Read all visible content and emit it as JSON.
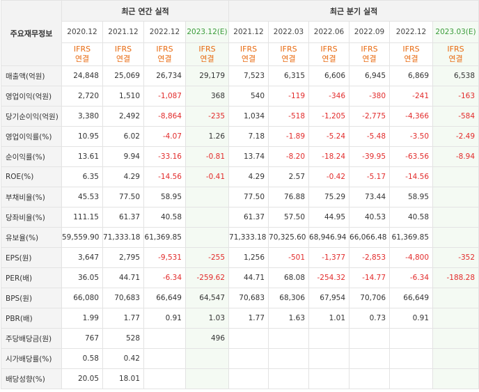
{
  "header": {
    "corner_label": "주요재무정보",
    "annual_title": "최근 연간 실적",
    "quarterly_title": "최근 분기 실적",
    "periods": [
      "2020.12",
      "2021.12",
      "2022.12",
      "2023.12(E)",
      "2021.12",
      "2022.03",
      "2022.06",
      "2022.09",
      "2022.12",
      "2023.03(E)"
    ],
    "ifrs_line1": "IFRS",
    "ifrs_line2": "연결"
  },
  "rows": [
    {
      "label": "매출액(억원)",
      "values": [
        "24,848",
        "25,069",
        "26,734",
        "29,179",
        "7,523",
        "6,315",
        "6,606",
        "6,945",
        "6,869",
        "6,538"
      ]
    },
    {
      "label": "영업이익(억원)",
      "values": [
        "2,720",
        "1,510",
        "-1,087",
        "368",
        "540",
        "-119",
        "-346",
        "-380",
        "-241",
        "-163"
      ]
    },
    {
      "label": "당기순이익(억원)",
      "values": [
        "3,380",
        "2,492",
        "-8,864",
        "-235",
        "1,034",
        "-518",
        "-1,205",
        "-2,775",
        "-4,366",
        "-584"
      ]
    },
    {
      "label": "영업이익률(%)",
      "values": [
        "10.95",
        "6.02",
        "-4.07",
        "1.26",
        "7.18",
        "-1.89",
        "-5.24",
        "-5.48",
        "-3.50",
        "-2.49"
      ]
    },
    {
      "label": "순이익률(%)",
      "values": [
        "13.61",
        "9.94",
        "-33.16",
        "-0.81",
        "13.74",
        "-8.20",
        "-18.24",
        "-39.95",
        "-63.56",
        "-8.94"
      ]
    },
    {
      "label": "ROE(%)",
      "values": [
        "6.35",
        "4.29",
        "-14.56",
        "-0.41",
        "4.29",
        "2.57",
        "-0.42",
        "-5.17",
        "-14.56",
        ""
      ]
    },
    {
      "label": "부채비율(%)",
      "values": [
        "45.53",
        "77.50",
        "58.95",
        "",
        "77.50",
        "76.88",
        "75.29",
        "73.44",
        "58.95",
        ""
      ]
    },
    {
      "label": "당좌비율(%)",
      "values": [
        "111.15",
        "61.37",
        "40.58",
        "",
        "61.37",
        "57.50",
        "44.95",
        "40.53",
        "40.58",
        ""
      ]
    },
    {
      "label": "유보율(%)",
      "values": [
        "59,559.90",
        "71,333.18",
        "61,369.85",
        "",
        "71,333.18",
        "70,325.60",
        "68,946.94",
        "66,066.48",
        "61,369.85",
        ""
      ]
    },
    {
      "label": "EPS(원)",
      "values": [
        "3,647",
        "2,795",
        "-9,531",
        "-255",
        "1,256",
        "-501",
        "-1,377",
        "-2,853",
        "-4,800",
        "-352"
      ]
    },
    {
      "label": "PER(배)",
      "values": [
        "36.05",
        "44.71",
        "-6.34",
        "-259.62",
        "44.71",
        "68.08",
        "-254.32",
        "-14.77",
        "-6.34",
        "-188.28"
      ]
    },
    {
      "label": "BPS(원)",
      "values": [
        "66,080",
        "70,683",
        "66,649",
        "64,547",
        "70,683",
        "68,306",
        "67,954",
        "70,706",
        "66,649",
        ""
      ]
    },
    {
      "label": "PBR(배)",
      "values": [
        "1.99",
        "1.77",
        "0.91",
        "1.03",
        "1.77",
        "1.63",
        "1.01",
        "0.73",
        "0.91",
        ""
      ]
    },
    {
      "label": "주당배당금(원)",
      "values": [
        "767",
        "528",
        "",
        "496",
        "",
        "",
        "",
        "",
        "",
        ""
      ]
    },
    {
      "label": "시가배당률(%)",
      "values": [
        "0.58",
        "0.42",
        "",
        "",
        "",
        "",
        "",
        "",
        "",
        ""
      ]
    },
    {
      "label": "배당성향(%)",
      "values": [
        "20.05",
        "18.01",
        "",
        "",
        "",
        "",
        "",
        "",
        "",
        ""
      ]
    }
  ],
  "colors": {
    "negative": "#e22b2b",
    "ifrs": "#e86a10",
    "estimate_header": "#3a9c3a",
    "estimate_bg": "#f4faf3",
    "label_bg": "#f4f4f4"
  }
}
